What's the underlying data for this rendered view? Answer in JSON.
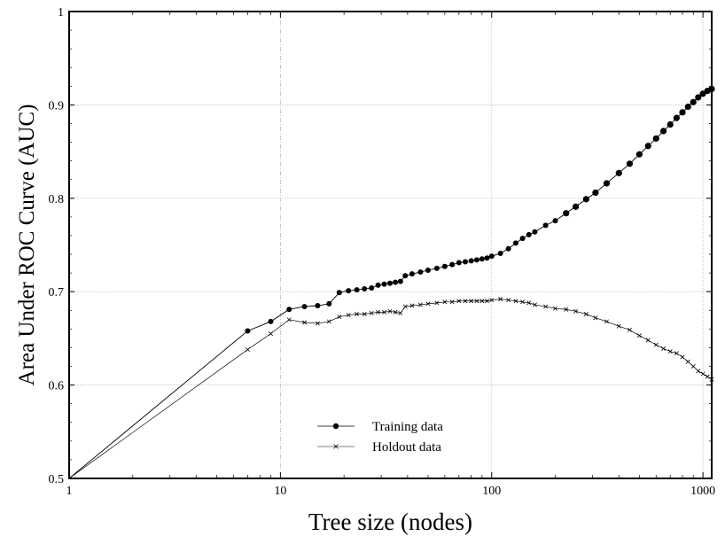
{
  "chart_data": {
    "type": "line",
    "xlabel": "Tree size (nodes)",
    "ylabel": "Area Under ROC Curve (AUC)",
    "xscale": "log",
    "xlim": [
      1,
      1100
    ],
    "ylim": [
      0.5,
      1.0
    ],
    "xticks": [
      1,
      10,
      100,
      1000
    ],
    "xtick_labels": [
      "1",
      "10",
      "100",
      "1000"
    ],
    "yticks": [
      0.5,
      0.6,
      0.7,
      0.8,
      0.9,
      1.0
    ],
    "ytick_labels": [
      "0.5",
      "0.6",
      "0.7",
      "0.8",
      "0.9",
      "1"
    ],
    "grid": true,
    "legend_position": "bottom-center",
    "series": [
      {
        "name": "Training data",
        "marker": "circle",
        "color": "#000000",
        "x": [
          1,
          7,
          9,
          11,
          13,
          15,
          17,
          19,
          21,
          23,
          25,
          27,
          29,
          31,
          33,
          35,
          37,
          39,
          42,
          46,
          50,
          55,
          60,
          65,
          70,
          75,
          80,
          85,
          90,
          95,
          100,
          110,
          120,
          130,
          140,
          150,
          160,
          180,
          200,
          225,
          250,
          280,
          310,
          350,
          400,
          450,
          500,
          550,
          600,
          650,
          700,
          750,
          800,
          850,
          900,
          950,
          1000,
          1050,
          1100
        ],
        "y": [
          0.5,
          0.658,
          0.668,
          0.681,
          0.684,
          0.685,
          0.687,
          0.699,
          0.701,
          0.702,
          0.703,
          0.704,
          0.707,
          0.708,
          0.709,
          0.71,
          0.711,
          0.717,
          0.719,
          0.721,
          0.723,
          0.725,
          0.727,
          0.729,
          0.731,
          0.732,
          0.733,
          0.734,
          0.735,
          0.736,
          0.738,
          0.741,
          0.746,
          0.752,
          0.757,
          0.761,
          0.764,
          0.771,
          0.776,
          0.784,
          0.791,
          0.799,
          0.806,
          0.816,
          0.827,
          0.837,
          0.847,
          0.856,
          0.864,
          0.872,
          0.879,
          0.886,
          0.892,
          0.898,
          0.903,
          0.908,
          0.912,
          0.915,
          0.917
        ]
      },
      {
        "name": "Holdout data",
        "marker": "x",
        "color": "#000000",
        "x": [
          1,
          7,
          9,
          11,
          13,
          15,
          17,
          19,
          21,
          23,
          25,
          27,
          29,
          31,
          33,
          35,
          37,
          39,
          42,
          46,
          50,
          55,
          60,
          65,
          70,
          75,
          80,
          85,
          90,
          95,
          100,
          110,
          120,
          130,
          140,
          150,
          160,
          180,
          200,
          225,
          250,
          280,
          310,
          350,
          400,
          450,
          500,
          550,
          600,
          650,
          700,
          750,
          800,
          850,
          900,
          950,
          1000,
          1050,
          1100
        ],
        "y": [
          0.5,
          0.638,
          0.655,
          0.67,
          0.667,
          0.666,
          0.668,
          0.673,
          0.675,
          0.676,
          0.676,
          0.677,
          0.678,
          0.678,
          0.679,
          0.678,
          0.677,
          0.684,
          0.685,
          0.686,
          0.687,
          0.688,
          0.689,
          0.689,
          0.69,
          0.69,
          0.69,
          0.69,
          0.69,
          0.69,
          0.691,
          0.692,
          0.691,
          0.69,
          0.689,
          0.688,
          0.686,
          0.684,
          0.682,
          0.681,
          0.679,
          0.676,
          0.672,
          0.668,
          0.663,
          0.659,
          0.653,
          0.648,
          0.643,
          0.639,
          0.636,
          0.634,
          0.63,
          0.625,
          0.62,
          0.615,
          0.612,
          0.609,
          0.606
        ]
      }
    ]
  }
}
